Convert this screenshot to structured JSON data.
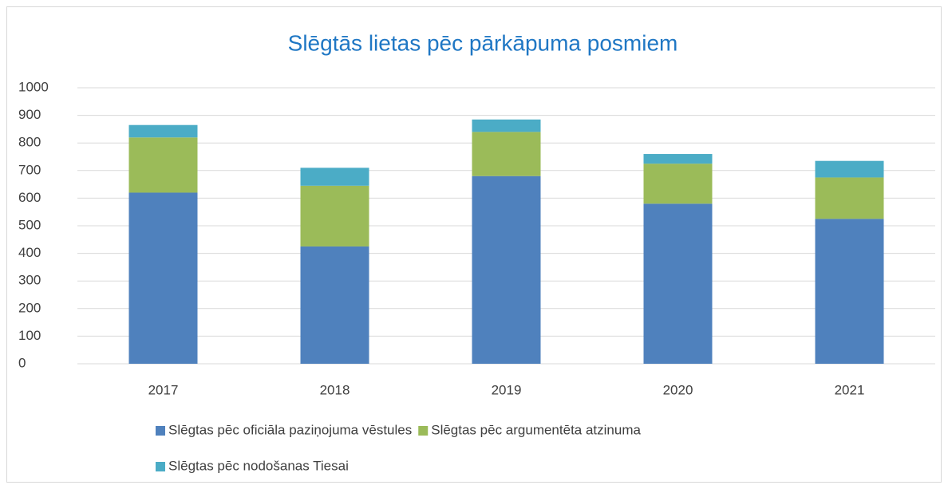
{
  "chart_data": {
    "type": "stacked_bar",
    "title": "Slēgtās lietas pēc pārkāpuma posmiem",
    "categories": [
      "2017",
      "2018",
      "2019",
      "2020",
      "2021"
    ],
    "series": [
      {
        "name": "Slēgtas pēc oficiāla paziņojuma vēstules",
        "color": "#4f81bd",
        "values": [
          620,
          425,
          680,
          580,
          525
        ]
      },
      {
        "name": "Slēgtas pēc argumentēta atzinuma",
        "color": "#9bbb59",
        "values": [
          200,
          220,
          160,
          145,
          150
        ]
      },
      {
        "name": "Slēgtas pēc nodošanas Tiesai",
        "color": "#4bacc6",
        "values": [
          45,
          65,
          45,
          35,
          60
        ]
      }
    ],
    "ylim": [
      0,
      1000
    ],
    "yticks": [
      0,
      100,
      200,
      300,
      400,
      500,
      600,
      700,
      800,
      900,
      1000
    ],
    "grid": true,
    "legend": "bottom"
  }
}
